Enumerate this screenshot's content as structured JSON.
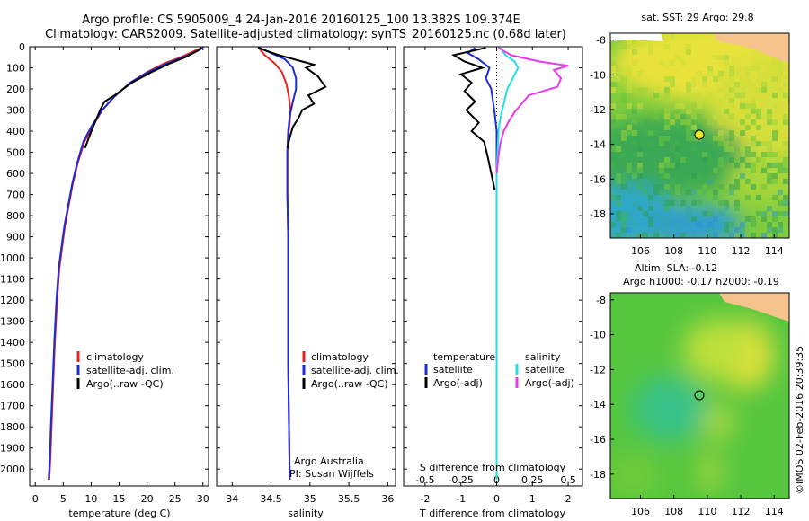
{
  "header": {
    "line1": "Argo profile: CS 5905009_4 24-Jan-2016 20160125_100 13.382S 109.374E",
    "line2": "Climatology: CARS2009. Satellite-adjusted climatology: synTS_20160125.nc (0.68d later)"
  },
  "footer_stamp": "©IMOS 02-Feb-2016 20:39:35",
  "credit": {
    "line1": "Argo Australia",
    "line2": "PI: Susan Wijffels"
  },
  "colors": {
    "climatology": "#e8231f",
    "satellite": "#1c2bd6",
    "argo": "#000000",
    "cyan": "#22e0e8",
    "magenta": "#e83ae8"
  },
  "chart_data": [
    {
      "type": "line",
      "id": "temperature",
      "xlabel": "temperature (deg C)",
      "ylabel": "",
      "xlim": [
        -1,
        31
      ],
      "ylim": [
        2080,
        0
      ],
      "xticks": [
        0,
        5,
        10,
        15,
        20,
        25,
        30
      ],
      "yticks": [
        0,
        100,
        200,
        300,
        400,
        500,
        600,
        700,
        800,
        900,
        1000,
        1100,
        1200,
        1300,
        1400,
        1500,
        1600,
        1700,
        1800,
        1900,
        2000
      ],
      "legend": [
        "climatology",
        "satellite-adj. clim.",
        "Argo(..raw -QC)"
      ],
      "series": [
        {
          "name": "climatology",
          "color": "climatology",
          "points": [
            [
              29.8,
              5
            ],
            [
              28.5,
              20
            ],
            [
              26,
              50
            ],
            [
              23,
              80
            ],
            [
              20,
              120
            ],
            [
              17,
              170
            ],
            [
              14,
              240
            ],
            [
              12,
              300
            ],
            [
              10.2,
              380
            ],
            [
              8.8,
              450
            ],
            [
              7.6,
              550
            ],
            [
              6.7,
              650
            ],
            [
              6,
              750
            ],
            [
              5.3,
              850
            ],
            [
              4.8,
              950
            ],
            [
              4.3,
              1050
            ],
            [
              3.9,
              1200
            ],
            [
              3.5,
              1400
            ],
            [
              3.2,
              1600
            ],
            [
              2.9,
              1800
            ],
            [
              2.7,
              1950
            ],
            [
              2.5,
              2050
            ]
          ]
        },
        {
          "name": "satellite-adj. clim.",
          "color": "satellite",
          "points": [
            [
              30,
              5
            ],
            [
              29,
              20
            ],
            [
              26.5,
              50
            ],
            [
              23.5,
              80
            ],
            [
              20.2,
              120
            ],
            [
              17,
              170
            ],
            [
              14,
              240
            ],
            [
              12,
              300
            ],
            [
              10,
              380
            ],
            [
              8.6,
              450
            ],
            [
              7.5,
              550
            ],
            [
              6.6,
              650
            ],
            [
              5.9,
              750
            ],
            [
              5.2,
              850
            ],
            [
              4.7,
              950
            ],
            [
              4.2,
              1050
            ],
            [
              3.8,
              1200
            ],
            [
              3.4,
              1400
            ],
            [
              3.1,
              1600
            ],
            [
              2.8,
              1800
            ],
            [
              2.6,
              1950
            ],
            [
              2.4,
              2050
            ]
          ]
        },
        {
          "name": "Argo(..raw -QC)",
          "color": "argo",
          "points": [
            [
              29.7,
              5
            ],
            [
              29,
              20
            ],
            [
              26.8,
              50
            ],
            [
              24,
              80
            ],
            [
              20.8,
              120
            ],
            [
              17.3,
              170
            ],
            [
              14.2,
              230
            ],
            [
              12.4,
              260
            ],
            [
              11.6,
              300
            ],
            [
              10.5,
              370
            ],
            [
              9.6,
              430
            ],
            [
              8.9,
              480
            ]
          ]
        }
      ]
    },
    {
      "type": "line",
      "id": "salinity",
      "xlabel": "salinity",
      "ylabel": "",
      "xlim": [
        33.8,
        36.1
      ],
      "ylim": [
        2080,
        0
      ],
      "xticks": [
        34,
        34.5,
        35,
        35.5,
        36
      ],
      "xticklabels": [
        "34",
        "34.5",
        "35",
        "35.5",
        "36"
      ],
      "legend": [
        "climatology",
        "satellite-adj. clim.",
        "Argo(..raw -QC)"
      ],
      "series": [
        {
          "name": "climatology",
          "color": "climatology",
          "points": [
            [
              34.34,
              5
            ],
            [
              34.42,
              40
            ],
            [
              34.55,
              80
            ],
            [
              34.64,
              120
            ],
            [
              34.7,
              180
            ],
            [
              34.73,
              240
            ],
            [
              34.75,
              300
            ],
            [
              34.74,
              360
            ],
            [
              34.72,
              420
            ],
            [
              34.71,
              500
            ],
            [
              34.71,
              700
            ],
            [
              34.72,
              900
            ],
            [
              34.72,
              1200
            ],
            [
              34.72,
              1500
            ],
            [
              34.73,
              1800
            ],
            [
              34.74,
              2050
            ]
          ]
        },
        {
          "name": "satellite-adj. clim.",
          "color": "satellite",
          "points": [
            [
              34.35,
              5
            ],
            [
              34.5,
              30
            ],
            [
              34.68,
              60
            ],
            [
              34.78,
              100
            ],
            [
              34.82,
              150
            ],
            [
              34.82,
              200
            ],
            [
              34.78,
              260
            ],
            [
              34.74,
              330
            ],
            [
              34.72,
              400
            ],
            [
              34.71,
              500
            ],
            [
              34.71,
              700
            ],
            [
              34.72,
              900
            ],
            [
              34.72,
              1200
            ],
            [
              34.72,
              1500
            ],
            [
              34.73,
              1800
            ],
            [
              34.74,
              2050
            ]
          ]
        },
        {
          "name": "Argo(..raw -QC)",
          "color": "argo",
          "points": [
            [
              34.33,
              5
            ],
            [
              34.6,
              40
            ],
            [
              34.9,
              70
            ],
            [
              35.05,
              85
            ],
            [
              34.95,
              100
            ],
            [
              35.1,
              140
            ],
            [
              35.2,
              190
            ],
            [
              34.98,
              230
            ],
            [
              35.05,
              270
            ],
            [
              34.9,
              300
            ],
            [
              34.85,
              340
            ],
            [
              34.78,
              380
            ],
            [
              34.74,
              430
            ],
            [
              34.71,
              480
            ]
          ]
        }
      ]
    },
    {
      "type": "line",
      "id": "differences",
      "xlabel": "T difference from climatology",
      "xlabel_top": "S difference from climatology",
      "xlim": [
        -2.6,
        2.4
      ],
      "ylim": [
        2080,
        0
      ],
      "xticks": [
        -2,
        -1,
        0,
        1,
        2
      ],
      "s_ticks": [
        -0.5,
        -0.25,
        0,
        0.25,
        0.5
      ],
      "s_ticklabels": [
        "-0.5",
        "-0.25",
        "0",
        "0.25",
        "0.5"
      ],
      "legend_left_title": "temperature",
      "legend_right_title": "salinity",
      "legend_left": [
        "satellite",
        "Argo(-adj)"
      ],
      "legend_right": [
        "satellite",
        "Argo(-adj)"
      ],
      "series": [
        {
          "name": "temperature satellite",
          "color": "satellite",
          "points": [
            [
              -0.6,
              5
            ],
            [
              -0.8,
              30
            ],
            [
              -0.5,
              60
            ],
            [
              -0.2,
              100
            ],
            [
              -0.3,
              150
            ],
            [
              -0.15,
              200
            ],
            [
              -0.1,
              260
            ],
            [
              -0.05,
              320
            ],
            [
              0,
              400
            ],
            [
              0,
              600
            ],
            [
              0,
              900
            ],
            [
              0,
              1200
            ],
            [
              0,
              1500
            ],
            [
              0,
              1800
            ],
            [
              0,
              2050
            ]
          ]
        },
        {
          "name": "temperature Argo(-adj)",
          "color": "argo",
          "points": [
            [
              -0.3,
              5
            ],
            [
              -1.2,
              40
            ],
            [
              -0.9,
              70
            ],
            [
              -0.4,
              100
            ],
            [
              -1.0,
              130
            ],
            [
              -0.7,
              170
            ],
            [
              -0.9,
              210
            ],
            [
              -0.6,
              260
            ],
            [
              -0.85,
              300
            ],
            [
              -0.5,
              360
            ],
            [
              -0.7,
              400
            ],
            [
              -0.35,
              450
            ],
            [
              -0.25,
              520
            ],
            [
              -0.15,
              600
            ],
            [
              -0.05,
              680
            ]
          ]
        },
        {
          "name": "salinity satellite",
          "color": "cyan",
          "points": [
            [
              0.1,
              5
            ],
            [
              0.25,
              40
            ],
            [
              0.5,
              70
            ],
            [
              0.6,
              100
            ],
            [
              0.45,
              150
            ],
            [
              0.3,
              200
            ],
            [
              0.2,
              270
            ],
            [
              0.1,
              340
            ],
            [
              0.05,
              400
            ],
            [
              0,
              600
            ],
            [
              0,
              900
            ],
            [
              0,
              1200
            ],
            [
              0,
              1500
            ],
            [
              0,
              1800
            ],
            [
              0,
              2050
            ]
          ]
        },
        {
          "name": "salinity Argo(-adj)",
          "color": "magenta",
          "points": [
            [
              0.05,
              5
            ],
            [
              0.4,
              40
            ],
            [
              1.2,
              70
            ],
            [
              2.0,
              90
            ],
            [
              1.6,
              110
            ],
            [
              1.8,
              150
            ],
            [
              1.7,
              190
            ],
            [
              0.9,
              230
            ],
            [
              0.7,
              270
            ],
            [
              0.5,
              310
            ],
            [
              0.35,
              350
            ],
            [
              0.2,
              400
            ],
            [
              0.1,
              460
            ],
            [
              0.05,
              520
            ],
            [
              0,
              600
            ]
          ]
        }
      ]
    },
    {
      "type": "heatmap",
      "id": "sst-map",
      "title": "sat. SST: 29  Argo: 29.8",
      "xlim": [
        104.2,
        114.9
      ],
      "ylim": [
        -19.4,
        -7.6
      ],
      "xticks": [
        106,
        108,
        110,
        112,
        114
      ],
      "yticks": [
        -8,
        -10,
        -12,
        -14,
        -16,
        -18
      ],
      "marker": {
        "lon": 109.374,
        "lat": -13.382
      }
    },
    {
      "type": "heatmap",
      "id": "sla-map",
      "title": "Altim. SLA: -0.12",
      "subtitle": "Argo h1000: -0.17  h2000: -0.19",
      "xlim": [
        104.2,
        114.9
      ],
      "ylim": [
        -19.4,
        -7.6
      ],
      "xticks": [
        106,
        108,
        110,
        112,
        114
      ],
      "yticks": [
        -8,
        -10,
        -12,
        -14,
        -16,
        -18
      ],
      "marker": {
        "lon": 109.374,
        "lat": -13.382
      }
    }
  ]
}
